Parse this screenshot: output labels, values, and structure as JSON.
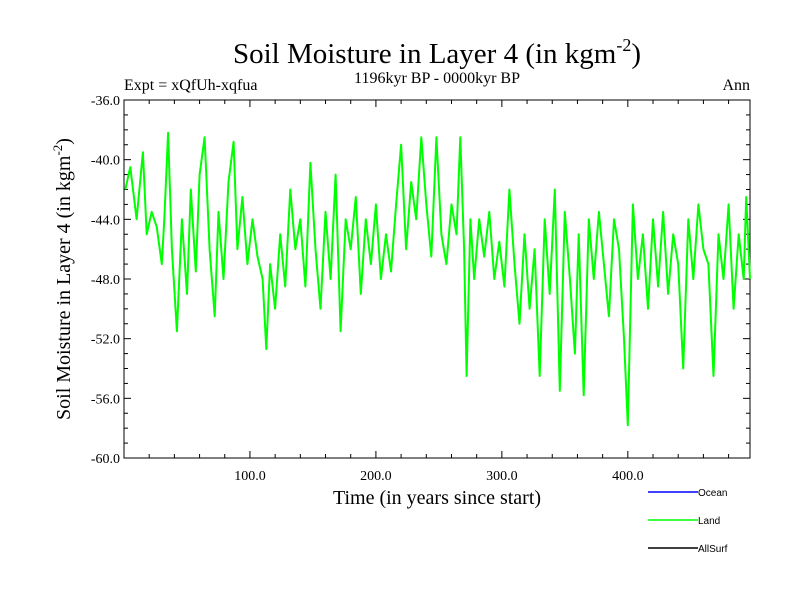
{
  "chart_data": {
    "type": "line",
    "title": "Soil Moisture in Layer 4 (in kgm",
    "title_sup": "-2",
    "title_close": ")",
    "subtitle_left": "Expt = xQfUh-xqfua",
    "subtitle_center": "1196kyr BP - 0000kyr BP",
    "subtitle_right": "Ann",
    "xlabel": "Time (in years since start)",
    "ylabel": "Soil Moisture in Layer 4 (in kgm",
    "ylabel_sup": "-2",
    "ylabel_close": ")",
    "xlim": [
      0,
      497
    ],
    "ylim": [
      -60,
      -36
    ],
    "x_ticks": [
      100,
      200,
      300,
      400
    ],
    "x_tick_labels": [
      "100.0",
      "200.0",
      "300.0",
      "400.0"
    ],
    "y_ticks": [
      -36,
      -40,
      -44,
      -48,
      -52,
      -56,
      -60
    ],
    "y_tick_labels": [
      "-36.0",
      "-40.0",
      "-44.0",
      "-48.0",
      "-52.0",
      "-56.0",
      "-60.0"
    ],
    "legend_position": "bottom-right",
    "series": [
      {
        "name": "Ocean",
        "color": "#0000ff",
        "x": [],
        "values": []
      },
      {
        "name": "Land",
        "color": "#00ff00",
        "x": [
          1,
          5,
          10,
          15,
          18,
          22,
          26,
          30,
          32,
          35,
          38,
          42,
          46,
          50,
          53,
          57,
          60,
          64,
          68,
          72,
          75,
          79,
          83,
          87,
          90,
          94,
          98,
          102,
          106,
          110,
          113,
          116,
          120,
          124,
          128,
          132,
          136,
          140,
          144,
          148,
          152,
          156,
          160,
          164,
          168,
          172,
          176,
          180,
          184,
          188,
          192,
          196,
          200,
          204,
          208,
          212,
          216,
          220,
          224,
          228,
          232,
          236,
          240,
          244,
          248,
          252,
          256,
          260,
          264,
          267,
          270,
          272,
          275,
          278,
          282,
          286,
          290,
          294,
          298,
          302,
          306,
          310,
          314,
          318,
          322,
          326,
          330,
          334,
          338,
          342,
          346,
          350,
          354,
          358,
          361,
          365,
          369,
          373,
          377,
          381,
          385,
          389,
          393,
          397,
          400,
          404,
          408,
          412,
          416,
          420,
          424,
          428,
          432,
          436,
          440,
          444,
          448,
          452,
          456,
          460,
          464,
          468,
          472,
          476,
          480,
          484,
          488,
          492,
          494,
          497
        ],
        "values": [
          -42,
          -40.5,
          -44,
          -39.5,
          -45,
          -43.5,
          -44.5,
          -47,
          -44,
          -38.2,
          -46,
          -51.5,
          -44,
          -49,
          -42,
          -47.5,
          -41,
          -38.5,
          -46,
          -50.5,
          -43.5,
          -48,
          -41.5,
          -38.8,
          -46,
          -42.5,
          -47,
          -44,
          -46.5,
          -48,
          -52.7,
          -47,
          -50,
          -45,
          -48.5,
          -42,
          -46,
          -44,
          -48.5,
          -40.2,
          -46,
          -50,
          -43.5,
          -48,
          -41,
          -51.5,
          -44,
          -46,
          -42.5,
          -49,
          -44,
          -47,
          -43,
          -48,
          -45,
          -47.5,
          -43,
          -39,
          -46,
          -41.5,
          -44,
          -38.5,
          -43,
          -46.5,
          -38.5,
          -45,
          -47,
          -43,
          -45,
          -38.5,
          -46,
          -54.5,
          -44,
          -48,
          -44,
          -46.5,
          -43.5,
          -48,
          -45.5,
          -48.5,
          -42,
          -47,
          -51,
          -45,
          -50,
          -46,
          -54.5,
          -44,
          -49,
          -42,
          -55.5,
          -43.5,
          -48,
          -53,
          -45,
          -55.8,
          -44,
          -48,
          -43.5,
          -47,
          -50.5,
          -44,
          -46,
          -52,
          -57.8,
          -43,
          -48,
          -45,
          -50,
          -44,
          -48.5,
          -43.5,
          -49,
          -45,
          -47,
          -54,
          -44,
          -48,
          -43,
          -46,
          -47,
          -54.5,
          -45,
          -48,
          -43,
          -50,
          -45,
          -48,
          -42.5,
          -48
        ]
      },
      {
        "name": "AllSurf",
        "color": "#000000",
        "x": [],
        "values": []
      }
    ]
  }
}
